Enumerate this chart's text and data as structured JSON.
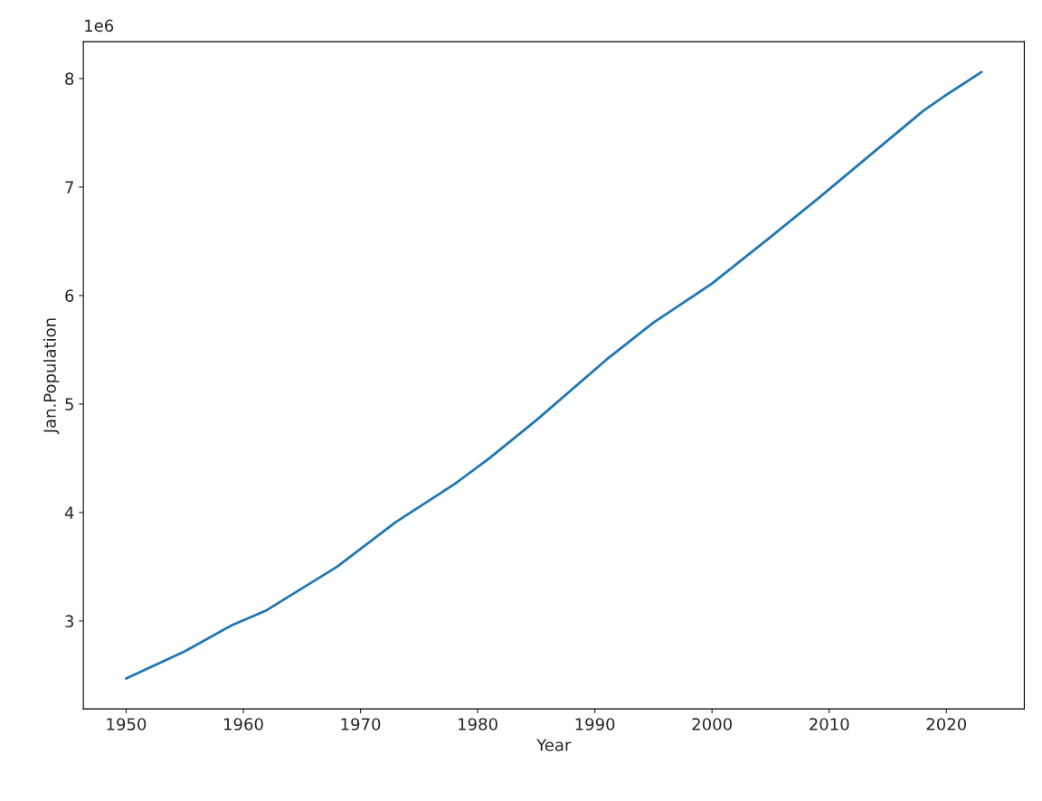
{
  "chart_data": {
    "type": "line",
    "xlabel": "Year",
    "ylabel": "Jan.Population",
    "annotations": [
      "1e6"
    ],
    "x": [
      1950,
      1952,
      1955,
      1959,
      1962,
      1965,
      1968,
      1973,
      1978,
      1981,
      1985,
      1991,
      1995,
      2000,
      2005,
      2009,
      2013,
      2018,
      2020,
      2021,
      2023
    ],
    "series": [
      {
        "color": "#1f77b4",
        "values": [
          2.47,
          2.57,
          2.72,
          2.96,
          3.1,
          3.3,
          3.5,
          3.91,
          4.26,
          4.5,
          4.85,
          5.41,
          5.75,
          6.11,
          6.54,
          6.89,
          7.25,
          7.7,
          7.85,
          7.92,
          8.06
        ]
      }
    ],
    "xlim": [
      1946.35,
      2026.65
    ],
    "xticks": [
      1950,
      1960,
      1970,
      1980,
      1990,
      2000,
      2010,
      2020
    ],
    "ylim": [
      2.19,
      8.34
    ],
    "yticks": [
      3,
      4,
      5,
      6,
      7,
      8
    ],
    "grid": false,
    "legend": false
  }
}
